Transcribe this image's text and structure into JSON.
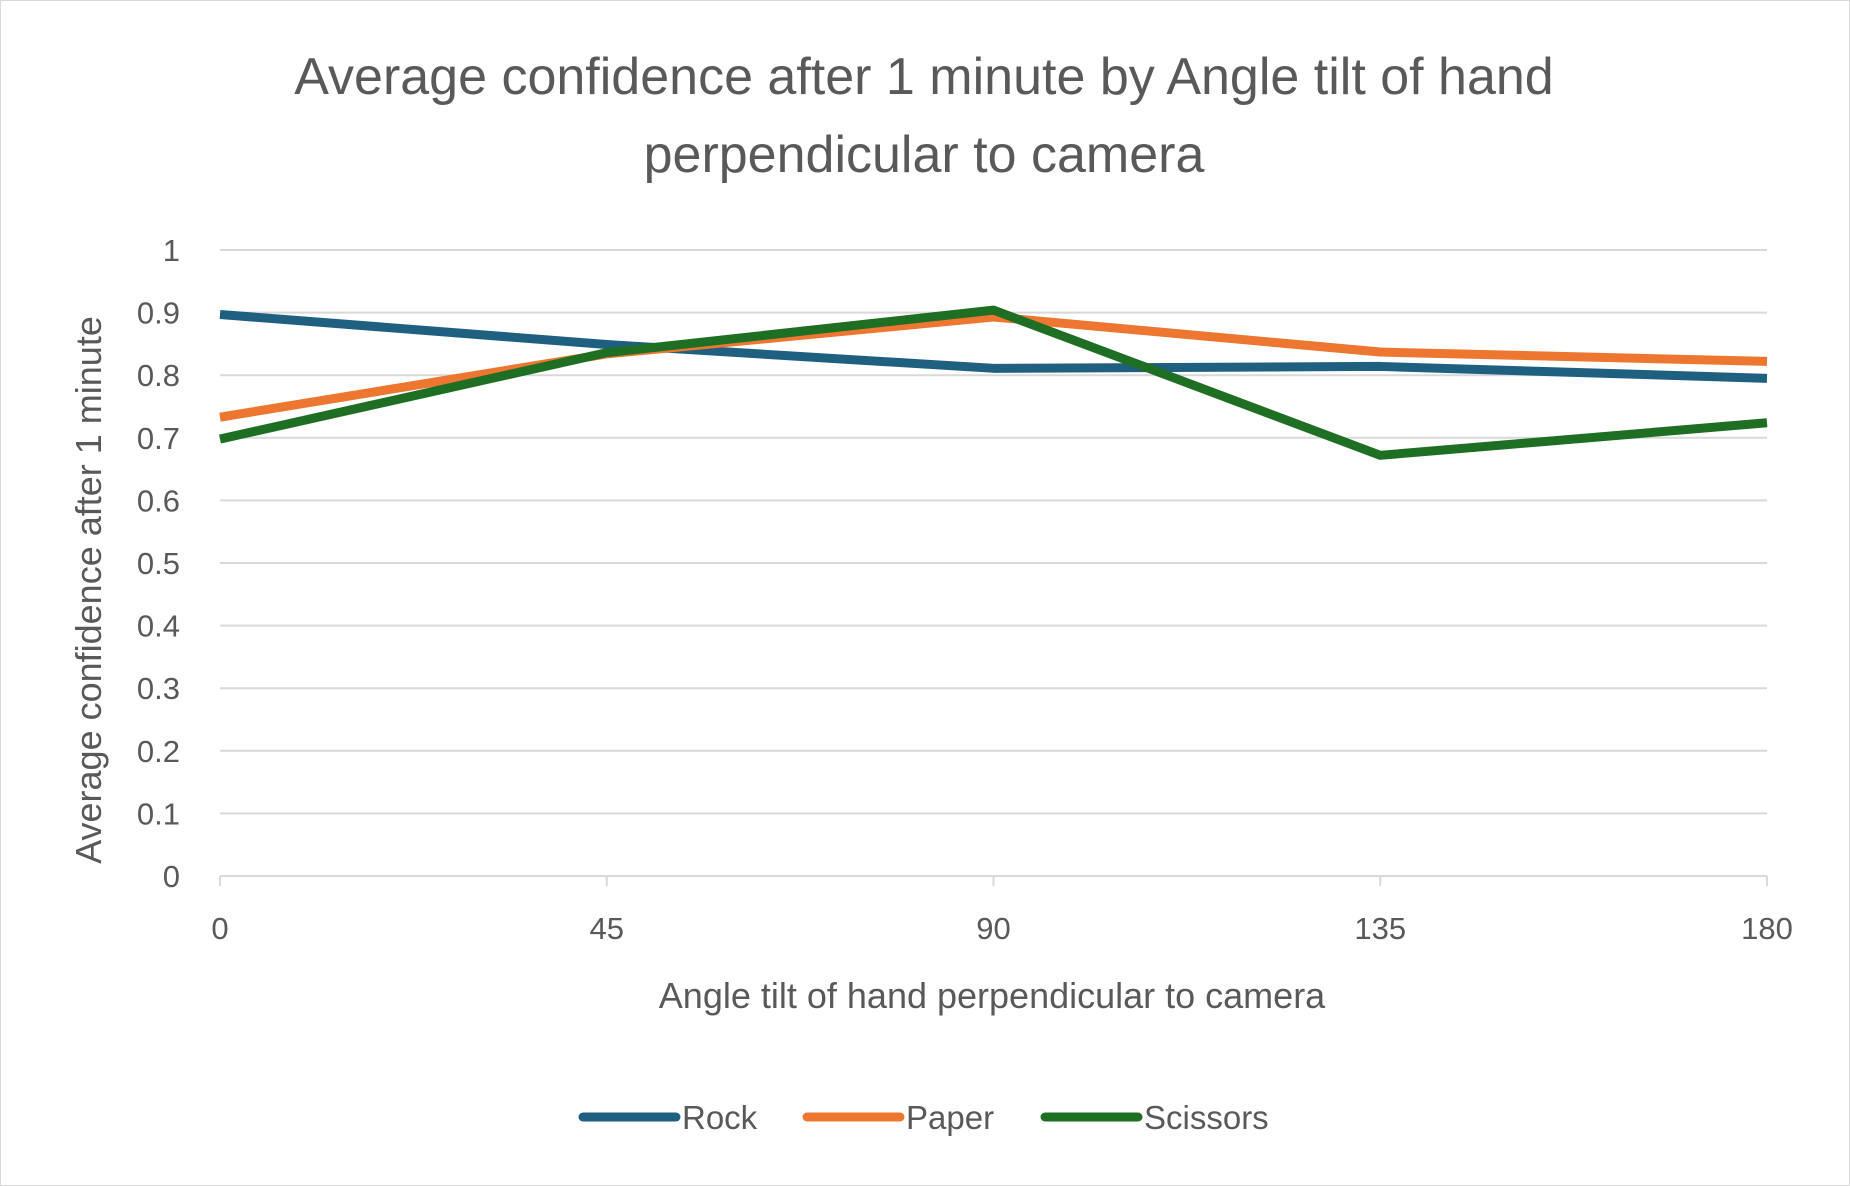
{
  "chart_data": {
    "type": "line",
    "title_lines": [
      "Average confidence after 1 minute by Angle tilt of hand",
      "perpendicular to camera"
    ],
    "xlabel": "Angle tilt of hand perpendicular to camera",
    "ylabel": "Average confidence after 1 minute",
    "x": [
      0,
      45,
      90,
      135,
      180
    ],
    "x_tick_labels": [
      "0",
      "45",
      "90",
      "135",
      "180"
    ],
    "y_tick_labels": [
      "0",
      "0.1",
      "0.2",
      "0.3",
      "0.4",
      "0.5",
      "0.6",
      "0.7",
      "0.8",
      "0.9",
      "1"
    ],
    "ylim": [
      0,
      1
    ],
    "xlim": [
      0,
      180
    ],
    "grid": true,
    "legend_position": "bottom",
    "series": [
      {
        "name": "Rock",
        "color": "#1f5f7f",
        "values": [
          0.897,
          0.849,
          0.811,
          0.814,
          0.795
        ]
      },
      {
        "name": "Paper",
        "color": "#ed7631",
        "values": [
          0.733,
          0.834,
          0.893,
          0.837,
          0.822
        ]
      },
      {
        "name": "Scissors",
        "color": "#1e6e23",
        "values": [
          0.698,
          0.836,
          0.904,
          0.672,
          0.724
        ]
      }
    ]
  }
}
